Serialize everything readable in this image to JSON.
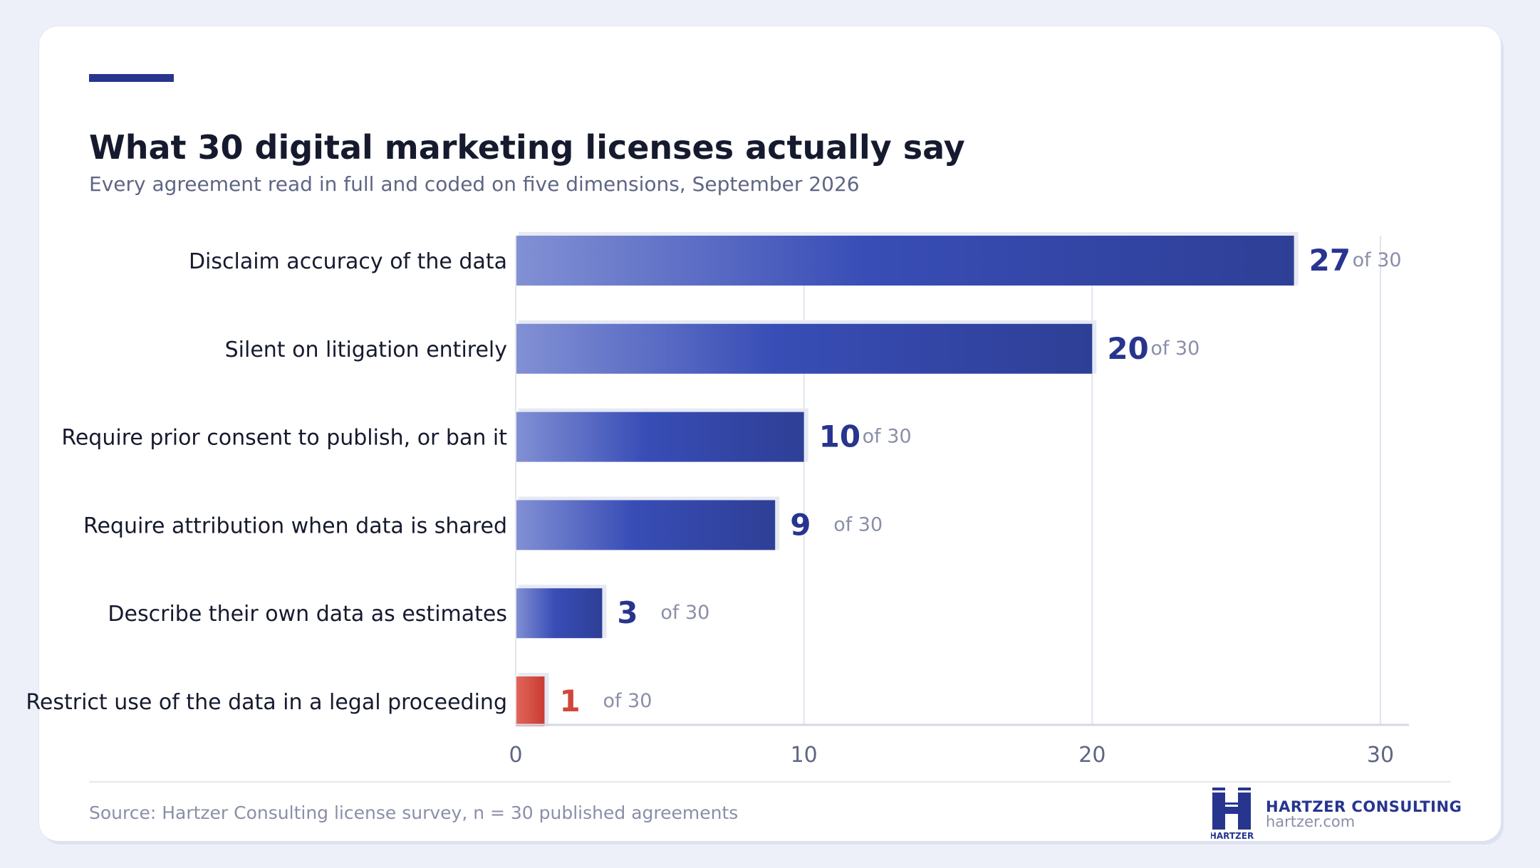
{
  "header": {
    "title": "What 30 digital marketing licenses actually say",
    "subtitle": "Every agreement read in full and coded on five dimensions, September 2026"
  },
  "footer": {
    "source": "Source: Hartzer Consulting license survey, n = 30 published agreements",
    "brand_name": "HARTZER CONSULTING",
    "brand_url": "hartzer.com",
    "logo_text": "HARTZER"
  },
  "colors": {
    "accent": "#27358f",
    "bar_light": "#8290d4",
    "bar_mid": "#384db6",
    "bar_dark": "#2e3f96",
    "highlight_light": "#e1665a",
    "highlight_dark": "#c93c33",
    "highlight_text": "#d0463b",
    "value_text": "#27358f",
    "muted_text": "#8a8fa8"
  },
  "chart_data": {
    "type": "bar",
    "orientation": "horizontal",
    "title": "What 30 digital marketing licenses actually say",
    "subtitle": "Every agreement read in full and coded on five dimensions, September 2026",
    "categories": [
      "Disclaim accuracy of the data",
      "Silent on litigation entirely",
      "Require prior consent to publish, or ban it",
      "Require attribution when data is shared",
      "Describe their own data as estimates",
      "Restrict use of the data in a legal proceeding"
    ],
    "values": [
      27,
      20,
      10,
      9,
      3,
      1
    ],
    "value_suffix": "of 30",
    "highlight_index": 5,
    "xlim": [
      0,
      30
    ],
    "xticks": [
      0,
      10,
      20,
      30
    ],
    "grid": "vertical",
    "legend": "none"
  }
}
